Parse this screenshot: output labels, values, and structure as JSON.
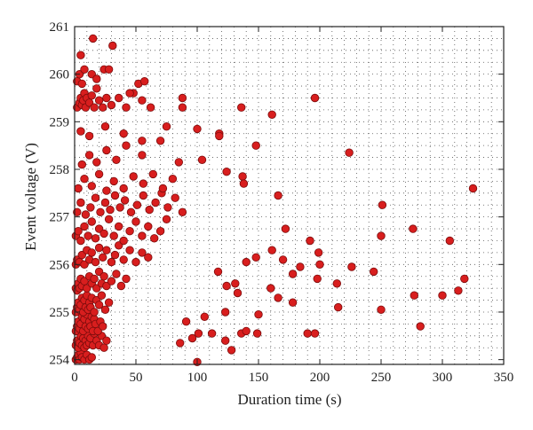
{
  "chart_data": {
    "type": "scatter",
    "xlabel": "Duration time (s)",
    "ylabel": "Event voltage (V)",
    "xlim": [
      0,
      350
    ],
    "ylim": [
      253.9,
      261
    ],
    "xticks": [
      0,
      50,
      100,
      150,
      200,
      250,
      300,
      350
    ],
    "yticks": [
      254,
      255,
      256,
      257,
      258,
      259,
      260,
      261
    ],
    "grid": "dotted",
    "marker_color": "#d81e1e",
    "marker_edge": "#7a0c0c",
    "points": [
      [
        1,
        254.0
      ],
      [
        2,
        254.05
      ],
      [
        3,
        254.1
      ],
      [
        4,
        254.0
      ],
      [
        5,
        254.15
      ],
      [
        6,
        254.05
      ],
      [
        8,
        254.0
      ],
      [
        10,
        254.1
      ],
      [
        12,
        254.0
      ],
      [
        14,
        254.05
      ],
      [
        1,
        254.3
      ],
      [
        2,
        254.4
      ],
      [
        3,
        254.25
      ],
      [
        4,
        254.35
      ],
      [
        5,
        254.5
      ],
      [
        6,
        254.3
      ],
      [
        7,
        254.45
      ],
      [
        8,
        254.25
      ],
      [
        9,
        254.4
      ],
      [
        10,
        254.3
      ],
      [
        11,
        254.5
      ],
      [
        12,
        254.35
      ],
      [
        13,
        254.45
      ],
      [
        15,
        254.3
      ],
      [
        16,
        254.55
      ],
      [
        18,
        254.4
      ],
      [
        20,
        254.3
      ],
      [
        22,
        254.5
      ],
      [
        24,
        254.25
      ],
      [
        26,
        254.4
      ],
      [
        1,
        254.6
      ],
      [
        2,
        254.7
      ],
      [
        3,
        254.8
      ],
      [
        4,
        254.65
      ],
      [
        5,
        254.75
      ],
      [
        6,
        254.9
      ],
      [
        7,
        254.6
      ],
      [
        8,
        254.85
      ],
      [
        9,
        254.7
      ],
      [
        10,
        254.95
      ],
      [
        11,
        254.65
      ],
      [
        12,
        254.8
      ],
      [
        13,
        254.7
      ],
      [
        14,
        254.9
      ],
      [
        15,
        254.6
      ],
      [
        16,
        254.85
      ],
      [
        17,
        254.75
      ],
      [
        19,
        254.6
      ],
      [
        21,
        254.8
      ],
      [
        23,
        254.7
      ],
      [
        1,
        255.0
      ],
      [
        2,
        255.1
      ],
      [
        3,
        255.2
      ],
      [
        4,
        255.05
      ],
      [
        5,
        255.15
      ],
      [
        6,
        255.3
      ],
      [
        7,
        255.0
      ],
      [
        8,
        255.25
      ],
      [
        9,
        255.1
      ],
      [
        10,
        255.35
      ],
      [
        11,
        255.05
      ],
      [
        12,
        255.2
      ],
      [
        13,
        255.1
      ],
      [
        14,
        255.3
      ],
      [
        16,
        255.0
      ],
      [
        18,
        255.25
      ],
      [
        20,
        255.15
      ],
      [
        22,
        255.35
      ],
      [
        25,
        255.05
      ],
      [
        28,
        255.2
      ],
      [
        1,
        255.5
      ],
      [
        2,
        255.45
      ],
      [
        3,
        255.6
      ],
      [
        4,
        255.5
      ],
      [
        5,
        255.7
      ],
      [
        6,
        255.55
      ],
      [
        8,
        255.65
      ],
      [
        10,
        255.5
      ],
      [
        12,
        255.75
      ],
      [
        14,
        255.6
      ],
      [
        16,
        255.7
      ],
      [
        18,
        255.5
      ],
      [
        20,
        255.85
      ],
      [
        22,
        255.6
      ],
      [
        24,
        255.75
      ],
      [
        26,
        255.55
      ],
      [
        30,
        255.65
      ],
      [
        34,
        255.8
      ],
      [
        38,
        255.55
      ],
      [
        42,
        255.7
      ],
      [
        1,
        256.0
      ],
      [
        2,
        256.1
      ],
      [
        4,
        256.05
      ],
      [
        6,
        256.2
      ],
      [
        8,
        256.0
      ],
      [
        10,
        256.3
      ],
      [
        12,
        256.1
      ],
      [
        14,
        256.25
      ],
      [
        17,
        256.05
      ],
      [
        20,
        256.35
      ],
      [
        23,
        256.15
      ],
      [
        26,
        256.3
      ],
      [
        30,
        256.05
      ],
      [
        33,
        256.2
      ],
      [
        36,
        256.4
      ],
      [
        40,
        256.1
      ],
      [
        45,
        256.3
      ],
      [
        50,
        256.05
      ],
      [
        55,
        256.25
      ],
      [
        60,
        256.15
      ],
      [
        1,
        256.6
      ],
      [
        3,
        256.7
      ],
      [
        5,
        256.5
      ],
      [
        8,
        256.8
      ],
      [
        11,
        256.6
      ],
      [
        14,
        256.9
      ],
      [
        17,
        256.55
      ],
      [
        20,
        256.75
      ],
      [
        24,
        256.65
      ],
      [
        28,
        256.95
      ],
      [
        32,
        256.6
      ],
      [
        36,
        256.8
      ],
      [
        40,
        256.5
      ],
      [
        45,
        256.7
      ],
      [
        50,
        256.9
      ],
      [
        55,
        256.6
      ],
      [
        60,
        256.8
      ],
      [
        65,
        256.55
      ],
      [
        70,
        256.7
      ],
      [
        75,
        256.95
      ],
      [
        2,
        257.1
      ],
      [
        5,
        257.3
      ],
      [
        9,
        257.05
      ],
      [
        13,
        257.2
      ],
      [
        17,
        257.4
      ],
      [
        21,
        257.1
      ],
      [
        25,
        257.3
      ],
      [
        29,
        257.15
      ],
      [
        33,
        257.45
      ],
      [
        37,
        257.2
      ],
      [
        41,
        257.35
      ],
      [
        46,
        257.1
      ],
      [
        51,
        257.25
      ],
      [
        56,
        257.45
      ],
      [
        61,
        257.15
      ],
      [
        66,
        257.3
      ],
      [
        71,
        257.5
      ],
      [
        76,
        257.2
      ],
      [
        82,
        257.4
      ],
      [
        88,
        257.1
      ],
      [
        3,
        257.6
      ],
      [
        8,
        257.8
      ],
      [
        14,
        257.65
      ],
      [
        20,
        257.9
      ],
      [
        26,
        257.55
      ],
      [
        32,
        257.75
      ],
      [
        40,
        257.6
      ],
      [
        48,
        257.85
      ],
      [
        56,
        257.7
      ],
      [
        64,
        257.9
      ],
      [
        72,
        257.6
      ],
      [
        80,
        257.8
      ],
      [
        6,
        258.1
      ],
      [
        12,
        258.3
      ],
      [
        18,
        258.15
      ],
      [
        26,
        258.4
      ],
      [
        34,
        258.2
      ],
      [
        42,
        258.5
      ],
      [
        55,
        258.3
      ],
      [
        70,
        258.6
      ],
      [
        85,
        258.15
      ],
      [
        5,
        258.8
      ],
      [
        12,
        258.7
      ],
      [
        25,
        258.9
      ],
      [
        40,
        258.75
      ],
      [
        55,
        258.6
      ],
      [
        75,
        258.9
      ],
      [
        100,
        258.85
      ],
      [
        118,
        258.75
      ],
      [
        2,
        259.3
      ],
      [
        4,
        259.4
      ],
      [
        5,
        259.5
      ],
      [
        6,
        259.35
      ],
      [
        7,
        259.45
      ],
      [
        8,
        259.6
      ],
      [
        9,
        259.3
      ],
      [
        10,
        259.5
      ],
      [
        12,
        259.4
      ],
      [
        14,
        259.55
      ],
      [
        16,
        259.3
      ],
      [
        18,
        259.7
      ],
      [
        20,
        259.45
      ],
      [
        23,
        259.3
      ],
      [
        26,
        259.5
      ],
      [
        30,
        259.35
      ],
      [
        36,
        259.5
      ],
      [
        42,
        259.3
      ],
      [
        48,
        259.6
      ],
      [
        55,
        259.45
      ],
      [
        62,
        259.3
      ],
      [
        88,
        259.5
      ],
      [
        88,
        259.3
      ],
      [
        136,
        259.3
      ],
      [
        161,
        259.15
      ],
      [
        196,
        259.5
      ],
      [
        2,
        259.85
      ],
      [
        4,
        260.0
      ],
      [
        6,
        259.8
      ],
      [
        8,
        260.1
      ],
      [
        14,
        260.0
      ],
      [
        18,
        259.9
      ],
      [
        24,
        260.1
      ],
      [
        28,
        260.1
      ],
      [
        45,
        259.6
      ],
      [
        52,
        259.8
      ],
      [
        57,
        259.85
      ],
      [
        5,
        260.4
      ],
      [
        15,
        260.75
      ],
      [
        31,
        260.6
      ],
      [
        86,
        254.35
      ],
      [
        96,
        254.45
      ],
      [
        101,
        254.55
      ],
      [
        112,
        254.55
      ],
      [
        123,
        254.4
      ],
      [
        136,
        254.55
      ],
      [
        149,
        254.55
      ],
      [
        190,
        254.55
      ],
      [
        196,
        254.55
      ],
      [
        100,
        253.95
      ],
      [
        128,
        254.2
      ],
      [
        140,
        254.6
      ],
      [
        91,
        254.8
      ],
      [
        106,
        254.9
      ],
      [
        123,
        255.0
      ],
      [
        150,
        254.95
      ],
      [
        178,
        255.2
      ],
      [
        215,
        255.1
      ],
      [
        250,
        255.05
      ],
      [
        277,
        255.35
      ],
      [
        300,
        255.35
      ],
      [
        313,
        255.45
      ],
      [
        318,
        255.7
      ],
      [
        282,
        254.7
      ],
      [
        133,
        255.4
      ],
      [
        160,
        255.5
      ],
      [
        166,
        255.3
      ],
      [
        117,
        255.85
      ],
      [
        124,
        255.55
      ],
      [
        131,
        255.6
      ],
      [
        178,
        255.8
      ],
      [
        184,
        255.95
      ],
      [
        198,
        255.7
      ],
      [
        214,
        255.6
      ],
      [
        244,
        255.85
      ],
      [
        200,
        256.0
      ],
      [
        226,
        255.95
      ],
      [
        140,
        256.05
      ],
      [
        148,
        256.15
      ],
      [
        161,
        256.3
      ],
      [
        170,
        256.1
      ],
      [
        192,
        256.5
      ],
      [
        172,
        256.75
      ],
      [
        199,
        256.25
      ],
      [
        250,
        256.6
      ],
      [
        276,
        256.75
      ],
      [
        306,
        256.5
      ],
      [
        251,
        257.25
      ],
      [
        325,
        257.6
      ],
      [
        166,
        257.45
      ],
      [
        137,
        257.85
      ],
      [
        124,
        257.95
      ],
      [
        138,
        257.7
      ],
      [
        148,
        258.5
      ],
      [
        224,
        258.35
      ],
      [
        118,
        258.7
      ],
      [
        104,
        258.2
      ]
    ]
  }
}
